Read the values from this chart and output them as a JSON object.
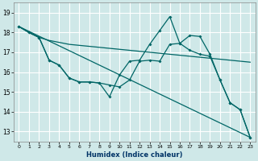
{
  "title": "",
  "xlabel": "Humidex (Indice chaleur)",
  "bg_color": "#cfe8e8",
  "grid_color": "#ffffff",
  "line_color": "#006666",
  "xlim": [
    -0.5,
    23.5
  ],
  "ylim": [
    12.5,
    19.5
  ],
  "yticks": [
    13,
    14,
    15,
    16,
    17,
    18,
    19
  ],
  "xticks": [
    0,
    1,
    2,
    3,
    4,
    5,
    6,
    7,
    8,
    9,
    10,
    11,
    12,
    13,
    14,
    15,
    16,
    17,
    18,
    19,
    20,
    21,
    22,
    23
  ],
  "series": [
    {
      "x": [
        0,
        1,
        2,
        3,
        4,
        5,
        6,
        7,
        8,
        9,
        10,
        11,
        12,
        13,
        14,
        15,
        16,
        17,
        18,
        19,
        20,
        21,
        22,
        23
      ],
      "y": [
        18.3,
        18.0,
        17.75,
        17.6,
        17.5,
        17.4,
        17.35,
        17.3,
        17.25,
        17.2,
        17.15,
        17.1,
        17.05,
        17.0,
        16.95,
        16.9,
        16.85,
        16.8,
        16.75,
        16.7,
        16.65,
        16.6,
        16.55,
        16.5
      ],
      "marker": false,
      "linestyle": "solid"
    },
    {
      "x": [
        0,
        23
      ],
      "y": [
        18.3,
        12.7
      ],
      "marker": false,
      "linestyle": "solid"
    },
    {
      "x": [
        0,
        1,
        2,
        3,
        4,
        5,
        6,
        7,
        8,
        9,
        10,
        11,
        12,
        13,
        14,
        15,
        16,
        17,
        18,
        19,
        20,
        21,
        22,
        23
      ],
      "y": [
        18.3,
        18.0,
        17.75,
        16.6,
        16.35,
        15.7,
        15.5,
        15.5,
        15.45,
        14.75,
        15.85,
        16.55,
        16.6,
        17.4,
        18.1,
        18.8,
        17.45,
        17.85,
        17.8,
        16.9,
        15.6,
        14.45,
        14.1,
        12.7
      ],
      "marker": true,
      "linestyle": "solid"
    },
    {
      "x": [
        0,
        1,
        2,
        3,
        4,
        5,
        6,
        7,
        8,
        9,
        10,
        11,
        12,
        13,
        14,
        15,
        16,
        17,
        18,
        19,
        20,
        21,
        22,
        23
      ],
      "y": [
        18.3,
        18.0,
        17.75,
        16.6,
        16.35,
        15.7,
        15.5,
        15.5,
        15.45,
        15.35,
        15.25,
        15.6,
        16.55,
        16.6,
        16.55,
        17.4,
        17.45,
        17.1,
        16.9,
        16.8,
        15.6,
        14.45,
        14.1,
        12.7
      ],
      "marker": true,
      "linestyle": "solid"
    }
  ]
}
